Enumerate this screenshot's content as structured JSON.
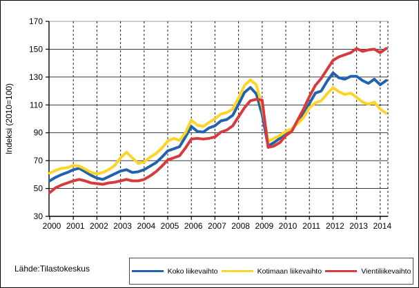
{
  "figure": {
    "source_label": "Lähde:Tilastokeskus"
  },
  "chart_data": {
    "type": "line",
    "title": "",
    "xlabel": "",
    "ylabel": "Indeksi (2010=100)",
    "ylim": [
      30,
      170
    ],
    "yticks": [
      30,
      50,
      70,
      90,
      110,
      130,
      150,
      170
    ],
    "xticks": [
      2000,
      2001,
      2002,
      2003,
      2004,
      2005,
      2006,
      2007,
      2008,
      2009,
      2010,
      2011,
      2012,
      2013,
      2014
    ],
    "grid": "horizontal solid, vertical dashed per year",
    "legend_position": "bottom",
    "x": [
      2000.0,
      2000.25,
      2000.5,
      2000.75,
      2001.0,
      2001.25,
      2001.5,
      2001.75,
      2002.0,
      2002.25,
      2002.5,
      2002.75,
      2003.0,
      2003.25,
      2003.5,
      2003.75,
      2004.0,
      2004.25,
      2004.5,
      2004.75,
      2005.0,
      2005.25,
      2005.5,
      2005.75,
      2006.0,
      2006.25,
      2006.5,
      2006.75,
      2007.0,
      2007.25,
      2007.5,
      2007.75,
      2008.0,
      2008.25,
      2008.5,
      2008.75,
      2009.0,
      2009.25,
      2009.5,
      2009.75,
      2010.0,
      2010.25,
      2010.5,
      2010.75,
      2011.0,
      2011.25,
      2011.5,
      2011.75,
      2012.0,
      2012.25,
      2012.5,
      2012.75,
      2013.0,
      2013.25,
      2013.5,
      2013.75,
      2014.0,
      2014.25
    ],
    "series": [
      {
        "name": "Koko liikevaihto",
        "color": "#2062AE",
        "values": [
          55.5,
          58,
          60,
          61.5,
          63.5,
          64.5,
          62,
          59.5,
          57.5,
          56.5,
          58.5,
          60.5,
          62.5,
          63.5,
          61.5,
          62,
          63.5,
          66,
          68.5,
          72.5,
          77,
          78.5,
          80,
          87,
          94.5,
          91,
          90.5,
          93.5,
          95,
          98.5,
          99.5,
          102.5,
          110.5,
          119,
          122.5,
          118,
          103,
          80.5,
          83,
          86,
          89.5,
          92,
          97.5,
          103,
          111,
          118.5,
          120,
          127,
          133,
          129.5,
          128.5,
          130.5,
          130.5,
          127.5,
          125.5,
          128.5,
          124.5,
          127.5
        ]
      },
      {
        "name": "Kotimaan liikevaihto",
        "color": "#FFD428",
        "values": [
          61,
          63,
          64.5,
          65,
          66.5,
          66,
          64,
          61.5,
          60.5,
          61.5,
          63.5,
          66.5,
          72,
          76,
          72,
          68,
          69,
          72.5,
          75,
          79,
          84,
          86,
          84.5,
          90,
          99,
          95.5,
          94.5,
          97.5,
          100,
          103.5,
          104.5,
          107,
          115,
          124,
          128,
          124.5,
          109,
          83.5,
          86,
          88,
          91,
          93,
          96.5,
          101,
          108,
          111.5,
          113,
          118,
          122.5,
          119.5,
          117.5,
          118.5,
          115.5,
          112,
          110.5,
          112,
          107,
          104
        ]
      },
      {
        "name": "Vientiliikevaihto",
        "color": "#D63A3C",
        "values": [
          47,
          50.5,
          52.5,
          54,
          55.5,
          56.5,
          55.5,
          54,
          53.5,
          53,
          54,
          54.5,
          55.5,
          56.5,
          55.5,
          55.5,
          56.5,
          59,
          62,
          66,
          70.5,
          72,
          73.5,
          79,
          85.5,
          86,
          85.5,
          86,
          87,
          90.5,
          92,
          95,
          101.5,
          108,
          113,
          114,
          113.5,
          79.5,
          80.5,
          83,
          88,
          91,
          99,
          107,
          116,
          124,
          129,
          135.5,
          142,
          144.5,
          146,
          147.5,
          150.5,
          148.5,
          149.5,
          150,
          147.5,
          150.5
        ]
      }
    ]
  }
}
